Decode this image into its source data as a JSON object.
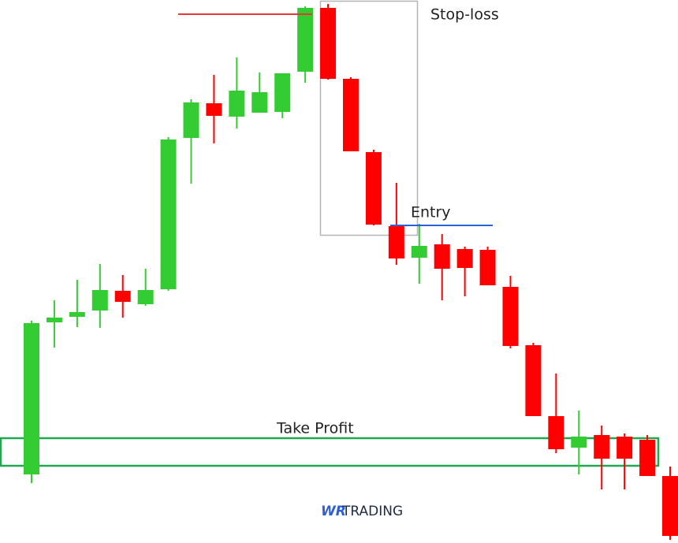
{
  "chart_data": {
    "type": "candlestick",
    "ylim": [
      15,
      700
    ],
    "up_color": "#33cc33",
    "down_color": "#ff0000",
    "open": [
      98,
      291,
      298,
      306,
      331,
      314,
      333,
      525,
      569,
      552,
      557,
      558,
      609,
      690,
      600,
      507,
      413,
      373,
      390,
      384,
      383,
      336,
      262,
      172,
      132,
      148,
      146,
      142,
      96
    ],
    "high": [
      293,
      319,
      345,
      365,
      351,
      359,
      526,
      574,
      605,
      627,
      608,
      607,
      692,
      695,
      602,
      510,
      468,
      416,
      403,
      387,
      387,
      350,
      265,
      226,
      179,
      160,
      150,
      148,
      108
    ],
    "low": [
      87,
      259,
      285,
      284,
      297,
      312,
      331,
      467,
      518,
      537,
      557,
      550,
      595,
      599,
      508,
      414,
      364,
      340,
      319,
      324,
      338,
      258,
      172,
      125,
      98,
      79,
      79,
      96,
      15
    ],
    "close": [
      290,
      297,
      304,
      332,
      317,
      332,
      523,
      570,
      553,
      585,
      583,
      607,
      690,
      600,
      508,
      415,
      372,
      388,
      359,
      360,
      338,
      261,
      172,
      130,
      146,
      118,
      118,
      96,
      20
    ],
    "stop_loss": {
      "label": "Stop-loss",
      "value": 682,
      "color": "#e53935"
    },
    "entry": {
      "label": "Entry",
      "value": 414,
      "color": "#2d5fd6"
    },
    "take_profit": {
      "label": "Take Profit",
      "range": [
        109,
        144
      ],
      "color": "#1fa84f"
    },
    "brand": {
      "mark": "WR",
      "name": "TRADING"
    }
  }
}
